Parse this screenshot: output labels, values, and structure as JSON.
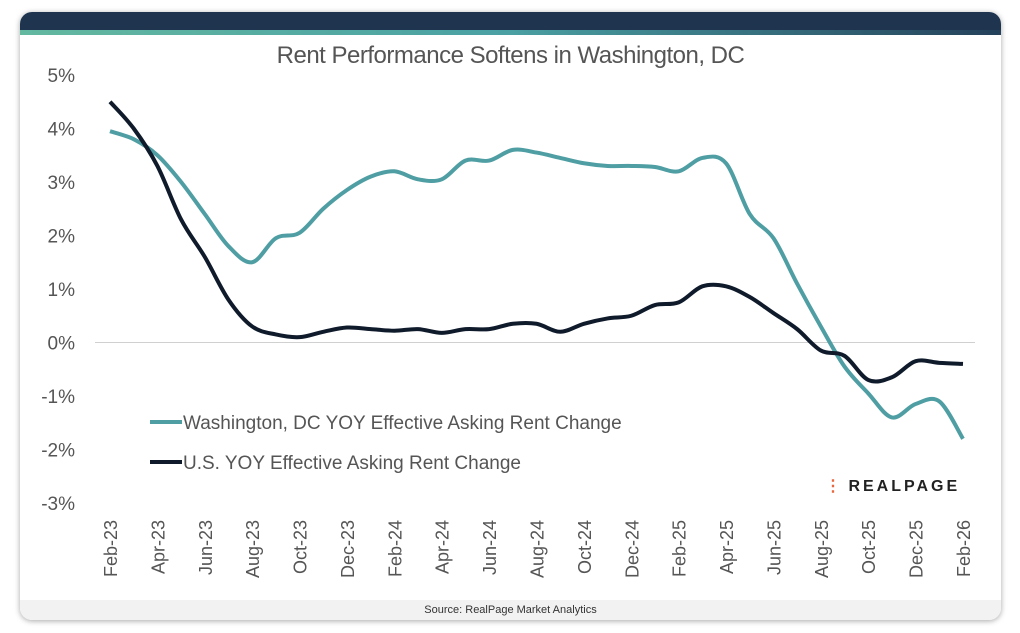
{
  "header": {
    "title": "Rent Performance Softens in Washington, DC"
  },
  "footer": {
    "source": "Source: RealPage Market Analytics"
  },
  "logo": {
    "text": "REALPAGE",
    "dot_color": "#e8673c"
  },
  "chart_data": {
    "type": "line",
    "title": "Rent Performance Softens in Washington, DC",
    "xlabel": "",
    "ylabel": "",
    "ylim": [
      -3,
      5
    ],
    "yticks": [
      "5%",
      "4%",
      "3%",
      "2%",
      "1%",
      "0%",
      "-1%",
      "-2%",
      "-3%"
    ],
    "ytick_values": [
      5,
      4,
      3,
      2,
      1,
      0,
      -1,
      -2,
      -3
    ],
    "x": [
      "Feb-23",
      "Mar-23",
      "Apr-23",
      "May-23",
      "Jun-23",
      "Jul-23",
      "Aug-23",
      "Sep-23",
      "Oct-23",
      "Nov-23",
      "Dec-23",
      "Jan-24",
      "Feb-24",
      "Mar-24",
      "Apr-24",
      "May-24",
      "Jun-24",
      "Jul-24",
      "Aug-24",
      "Sep-24",
      "Oct-24",
      "Nov-24",
      "Dec-24",
      "Jan-25",
      "Feb-25",
      "Mar-25",
      "Apr-25",
      "May-25",
      "Jun-25",
      "Jul-25",
      "Aug-25",
      "Sep-25",
      "Oct-25",
      "Nov-25",
      "Dec-25",
      "Jan-26",
      "Feb-26"
    ],
    "xtick_labels": [
      "Feb-23",
      "Apr-23",
      "Jun-23",
      "Aug-23",
      "Oct-23",
      "Dec-23",
      "Feb-24",
      "Apr-24",
      "Jun-24",
      "Aug-24",
      "Oct-24",
      "Dec-24",
      "Feb-25",
      "Apr-25",
      "Jun-25",
      "Aug-25",
      "Oct-25",
      "Dec-25",
      "Feb-26"
    ],
    "legend_position": "bottom-left",
    "series": [
      {
        "name": "Washington, DC YOY Effective Asking Rent Change",
        "color": "#4e9ea3",
        "values": [
          3.95,
          3.8,
          3.5,
          3.0,
          2.4,
          1.8,
          1.5,
          1.95,
          2.05,
          2.5,
          2.85,
          3.1,
          3.2,
          3.05,
          3.05,
          3.4,
          3.4,
          3.6,
          3.55,
          3.45,
          3.35,
          3.3,
          3.3,
          3.28,
          3.2,
          3.45,
          3.35,
          2.4,
          1.95,
          1.1,
          0.3,
          -0.45,
          -0.95,
          -1.4,
          -1.15,
          -1.1,
          -1.8
        ]
      },
      {
        "name": "U.S. YOY Effective Asking Rent Change",
        "color": "#0f1a2b",
        "values": [
          4.5,
          4.0,
          3.3,
          2.3,
          1.6,
          0.8,
          0.3,
          0.15,
          0.1,
          0.2,
          0.28,
          0.25,
          0.22,
          0.25,
          0.18,
          0.25,
          0.25,
          0.35,
          0.35,
          0.2,
          0.35,
          0.45,
          0.5,
          0.7,
          0.75,
          1.05,
          1.05,
          0.85,
          0.55,
          0.25,
          -0.15,
          -0.25,
          -0.7,
          -0.65,
          -0.35,
          -0.38,
          -0.4
        ]
      }
    ]
  }
}
